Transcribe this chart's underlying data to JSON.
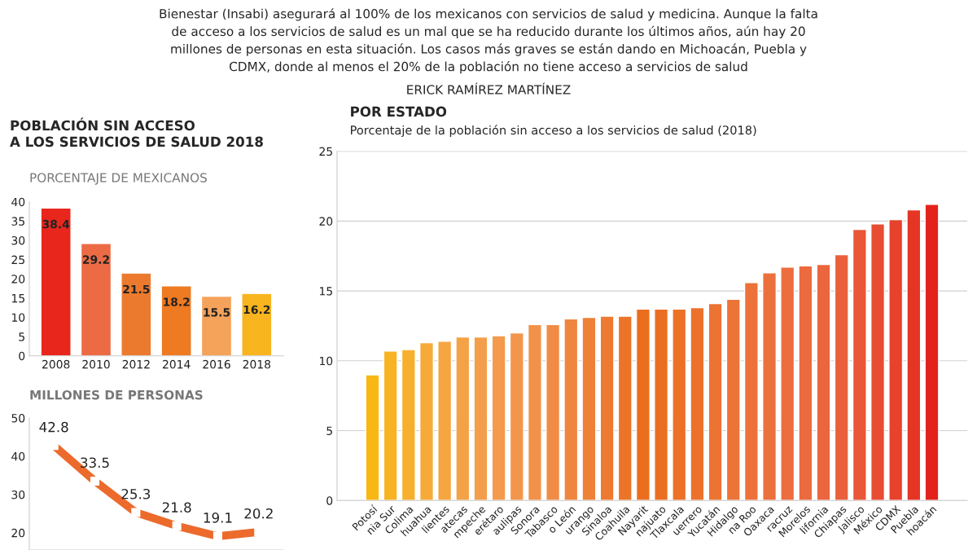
{
  "chart_data": [
    {
      "type": "bar",
      "title": "POBLACIÓN SIN ACCESO A LOS SERVICIOS DE SALUD 2018",
      "subtitle": "PORCENTAJE DE MEXICANOS",
      "annotations": [
        "Bienestar (Insabi) asegurará al 100% de los mexicanos con servicios de salud y medicina. Aunque la falta",
        "de acceso a los servicios de salud es un mal que se ha reducido durante los últimos años, aún hay 20",
        "millones de personas en esta situación. Los casos más graves se están dando en Michoacán, Puebla y",
        "CDMX, donde al menos el 20% de la población no tiene acceso a servicios de salud",
        "ERICK RAMÍREZ MARTÍNEZ"
      ],
      "categories": [
        "2008",
        "2010",
        "2012",
        "2014",
        "2016",
        "2018"
      ],
      "values": [
        38.4,
        29.2,
        21.5,
        18.2,
        15.5,
        16.2
      ],
      "colors": [
        "#e8261c",
        "#ec6b45",
        "#ec7a2e",
        "#ee7a22",
        "#f5a25a",
        "#f9b51f"
      ],
      "ylim": [
        0,
        40
      ],
      "yticks": [
        0,
        5,
        10,
        15,
        20,
        25,
        30,
        35,
        40
      ],
      "data_labels": true
    },
    {
      "type": "line",
      "title": "MILLONES DE PERSONAS",
      "categories": [
        null,
        null,
        null,
        null,
        null,
        null
      ],
      "series": [
        {
          "color": "#ec6a2c",
          "values": [
            42.8,
            33.5,
            25.3,
            21.8,
            19.1,
            20.2
          ]
        }
      ],
      "ylim": [
        15.5,
        50
      ],
      "yticks": [
        20,
        30,
        40,
        50
      ],
      "tick_labels": "y",
      "marker": "square",
      "data_labels": true
    },
    {
      "type": "bar",
      "title": "POR ESTADO",
      "subtitle": "Porcentaje de la población sin acceso a los servicios de salud (2018)",
      "categories": [
        "Potosí",
        "nia Sur",
        "Colima",
        "huahua",
        "lientes",
        "atecas",
        "mpeche",
        "erétaro",
        "aulipas",
        "Sonora",
        "Tabasco",
        "o León",
        "urango",
        "Sinaloa",
        "Coahuila",
        "Nayarit",
        "najuato",
        "Tlaxcala",
        "uerrero",
        "Yucatán",
        "Hidalgo",
        "na Roo",
        "Oaxaca",
        "racruz",
        "Morelos",
        "lifornia",
        "Chiapas",
        "Jalisco",
        "México",
        "CDMX",
        "Puebla",
        "hoacán"
      ],
      "values": [
        9.0,
        10.7,
        10.8,
        11.3,
        11.4,
        11.7,
        11.7,
        11.8,
        12.0,
        12.6,
        12.6,
        13.0,
        13.1,
        13.2,
        13.2,
        13.7,
        13.7,
        13.7,
        13.8,
        14.1,
        14.4,
        15.6,
        16.3,
        16.7,
        16.8,
        16.9,
        17.6,
        19.4,
        19.8,
        20.1,
        20.8,
        21.2
      ],
      "colors": [
        "#f8b712",
        "#f8b323",
        "#f7b02e",
        "#f6ab38",
        "#f5a640",
        "#f4a246",
        "#f39e4a",
        "#f39a4c",
        "#f2964c",
        "#f1914a",
        "#f08c46",
        "#ef8640",
        "#ee8038",
        "#ed7a30",
        "#ec7428",
        "#eb6e1f",
        "#eb6f22",
        "#ec7026",
        "#ec722c",
        "#ec7332",
        "#ec7436",
        "#ec7239",
        "#ec703c",
        "#ec6d3e",
        "#eb6a3e",
        "#eb663e",
        "#ea603c",
        "#e95638",
        "#e84c32",
        "#e7422c",
        "#e53524",
        "#e3231b"
      ],
      "ylim": [
        0,
        25
      ],
      "yticks": [
        0,
        5,
        10,
        15,
        20,
        25
      ],
      "grid": "y"
    }
  ]
}
